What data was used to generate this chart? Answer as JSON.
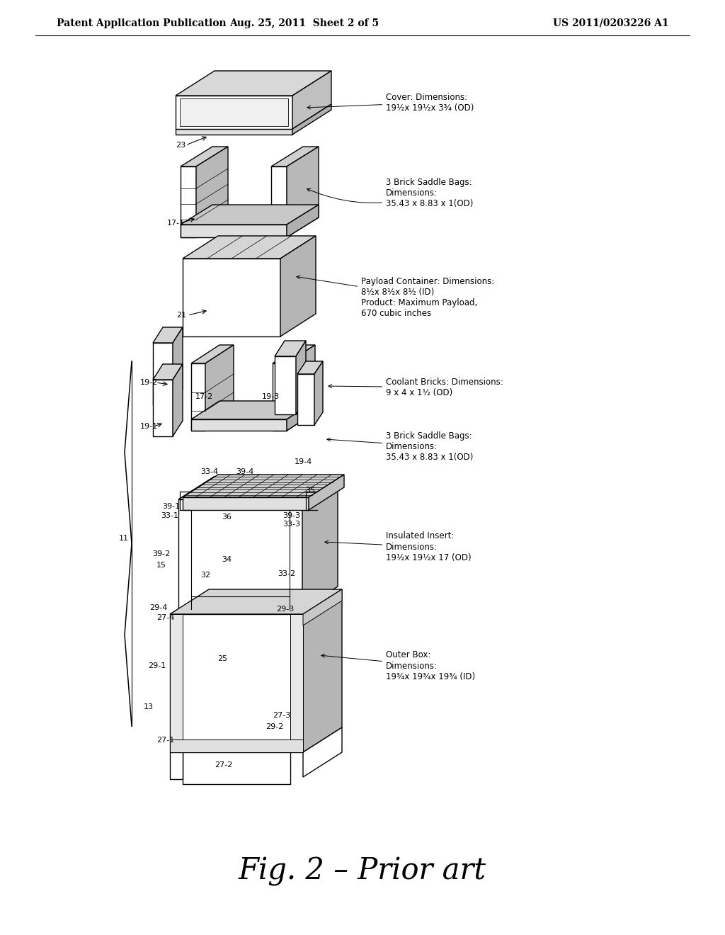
{
  "header_left": "Patent Application Publication",
  "header_center": "Aug. 25, 2011  Sheet 2 of 5",
  "header_right": "US 2011/0203226 A1",
  "figure_caption": "Fig. 2 – Prior art",
  "bg": "#ffffff",
  "header_fontsize": 10,
  "caption_fontsize": 30,
  "ann_fontsize": 8.5,
  "label_fontsize": 8
}
